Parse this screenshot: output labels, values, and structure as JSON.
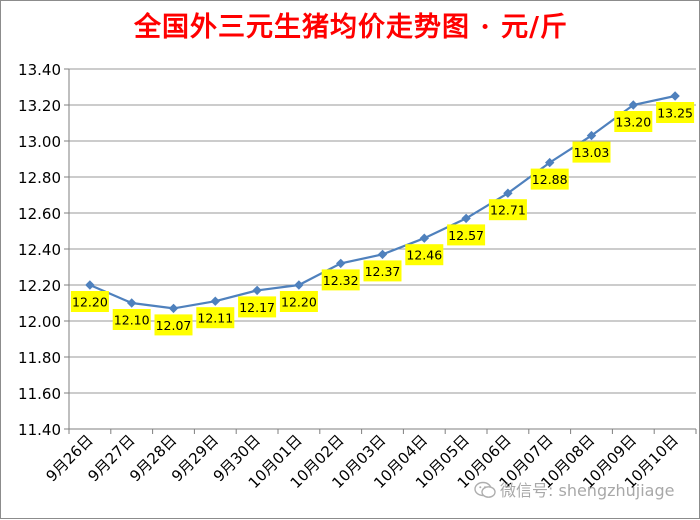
{
  "chart_data": {
    "type": "line",
    "title": "全国外三元生猪均价走势图 · 元/斤",
    "categories": [
      "9月26日",
      "9月27日",
      "9月28日",
      "9月29日",
      "9月30日",
      "10月01日",
      "10月02日",
      "10月03日",
      "10月04日",
      "10月05日",
      "10月06日",
      "10月07日",
      "10月08日",
      "10月09日",
      "10月10日"
    ],
    "values": [
      12.2,
      12.1,
      12.07,
      12.11,
      12.17,
      12.2,
      12.32,
      12.37,
      12.46,
      12.57,
      12.71,
      12.88,
      13.03,
      13.2,
      13.25
    ],
    "data_labels": [
      "12.20",
      "12.10",
      "12.07",
      "12.11",
      "12.17",
      "12.20",
      "12.32",
      "12.37",
      "12.46",
      "12.57",
      "12.71",
      "12.88",
      "13.03",
      "13.20",
      "13.25"
    ],
    "ylim": [
      11.4,
      13.4
    ],
    "yticks": [
      "11.40",
      "11.60",
      "11.80",
      "12.00",
      "12.20",
      "12.40",
      "12.60",
      "12.80",
      "13.00",
      "13.20",
      "13.40"
    ],
    "grid": true,
    "legend": "none",
    "xlabel": "",
    "ylabel": ""
  },
  "watermark": {
    "text": "微信号: shengzhujiage"
  },
  "colors": {
    "title": "#ff0000",
    "line": "#4f81bd",
    "label_bg": "#ffff00",
    "grid": "#9a9a9a",
    "axis": "#7f7f7f"
  }
}
